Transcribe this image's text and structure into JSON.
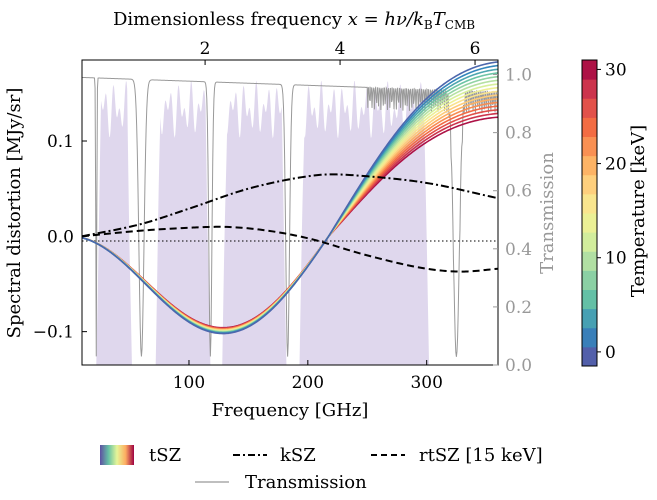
{
  "chart_data": {
    "type": "line",
    "top_axis": {
      "label_prefix": "Dimensionless frequency",
      "label_math": "x = hν/k",
      "label_sub_b": "B",
      "label_t": "T",
      "label_sub_cmb": "CMB",
      "ticks": [
        2,
        4,
        6
      ],
      "tick_labels": [
        "2",
        "4",
        "6"
      ]
    },
    "x_axis": {
      "label": "Frequency [GHz]",
      "range": [
        10,
        360
      ],
      "ticks": [
        100,
        200,
        300
      ],
      "tick_labels": [
        "100",
        "200",
        "300"
      ]
    },
    "y_axis": {
      "label": "Spectral distortion [MJy/sr]",
      "range": [
        -0.135,
        0.185
      ],
      "ticks": [
        -0.1,
        0.0,
        0.1
      ],
      "tick_labels": [
        "−0.1",
        "0.0",
        "0.1"
      ]
    },
    "y2_axis": {
      "label": "Transmission",
      "range": [
        0.0,
        1.05
      ],
      "ticks": [
        0.0,
        0.2,
        0.4,
        0.6,
        0.8,
        1.0
      ],
      "tick_labels": [
        "0.0",
        "0.2",
        "0.4",
        "0.6",
        "0.8",
        "1.0"
      ]
    },
    "colorbar": {
      "label": "Temperature [keV]",
      "range": [
        -1.5,
        31
      ],
      "ticks": [
        0,
        10,
        20,
        30
      ],
      "tick_labels": [
        "0",
        "10",
        "20",
        "30"
      ],
      "colors": [
        "#5e4fa2",
        "#3288bd",
        "#66c2a5",
        "#abdda4",
        "#e6f598",
        "#fee08b",
        "#fdae61",
        "#f46d43",
        "#d53e4f",
        "#9e0142"
      ]
    },
    "series": [
      {
        "name": "tSZ",
        "style": "colored-family",
        "temperatures_keV": [
          0,
          2,
          4,
          6,
          8,
          10,
          12,
          14,
          16,
          18,
          20,
          22,
          24,
          26,
          28,
          30
        ],
        "peak_at_360_T0": 0.183,
        "peak_at_360_T30": 0.125,
        "minimum": -0.102,
        "minimum_at_GHz": 125,
        "zero_crossing_GHz": 217
      },
      {
        "name": "kSZ",
        "style": "dashdot",
        "x": [
          10,
          60,
          100,
          150,
          200,
          220,
          250,
          300,
          360
        ],
        "values": [
          0.0,
          0.013,
          0.029,
          0.05,
          0.063,
          0.065,
          0.063,
          0.056,
          0.04
        ]
      },
      {
        "name": "rtSZ [15 keV]",
        "style": "dashed",
        "x": [
          10,
          60,
          100,
          125,
          160,
          200,
          250,
          300,
          330,
          360
        ],
        "values": [
          0.0,
          0.006,
          0.009,
          0.01,
          0.007,
          -0.002,
          -0.02,
          -0.034,
          -0.037,
          -0.034
        ]
      },
      {
        "name": "Transmission",
        "style": "thin-grey",
        "axis": "y2"
      }
    ],
    "bands_GHz": [
      [
        22,
        52
      ],
      [
        72,
        118
      ],
      [
        128,
        182
      ],
      [
        193,
        302
      ]
    ]
  },
  "legend": {
    "items": [
      "tSZ",
      "kSZ",
      "rtSZ [15 keV]",
      "Transmission"
    ],
    "colors": {
      "tsz_gradient": [
        "#5e4fa2",
        "#66c2a5",
        "#e6f598",
        "#fdae61",
        "#9e0142"
      ],
      "transmission": "#999999",
      "band": "#d9d0ea"
    }
  }
}
